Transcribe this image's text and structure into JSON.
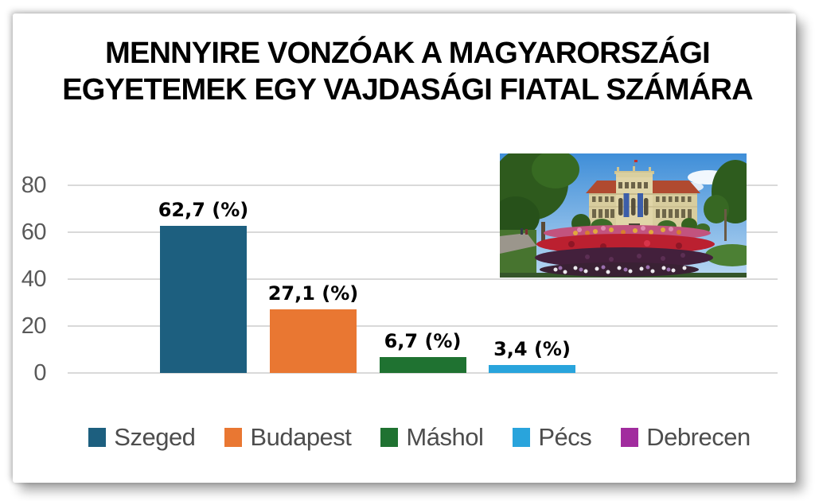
{
  "chart_data": {
    "type": "bar",
    "title": "MENNYIRE VONZÓAK A MAGYARORSZÁGI EGYETEMEK EGY VAJDASÁGI FIATAL SZÁMÁRA",
    "title_lines": [
      "MENNYIRE VONZÓAK A MAGYARORSZÁGI",
      "EGYETEMEK EGY VAJDASÁGI FIATAL SZÁMÁRA"
    ],
    "categories": [
      "Szeged",
      "Budapest",
      "Máshol",
      "Pécs",
      "Debrecen"
    ],
    "values": [
      62.7,
      27.1,
      6.7,
      3.4,
      0
    ],
    "value_labels": [
      "62,7 (%)",
      "27,1 (%)",
      "6,7 (%)",
      "3,4 (%)",
      ""
    ],
    "colors": [
      "#1d5f7f",
      "#e97732",
      "#1f7231",
      "#29a4dc",
      "#a12c9e"
    ],
    "yticks": [
      0,
      20,
      40,
      60,
      80
    ],
    "ytick_labels": [
      "0",
      "20",
      "40",
      "60",
      "80"
    ],
    "ylim": [
      0,
      80
    ],
    "xlabel": "",
    "ylabel": "",
    "grid": true,
    "legend_position": "bottom"
  },
  "photo": {
    "name": "szeged-university-photo"
  }
}
